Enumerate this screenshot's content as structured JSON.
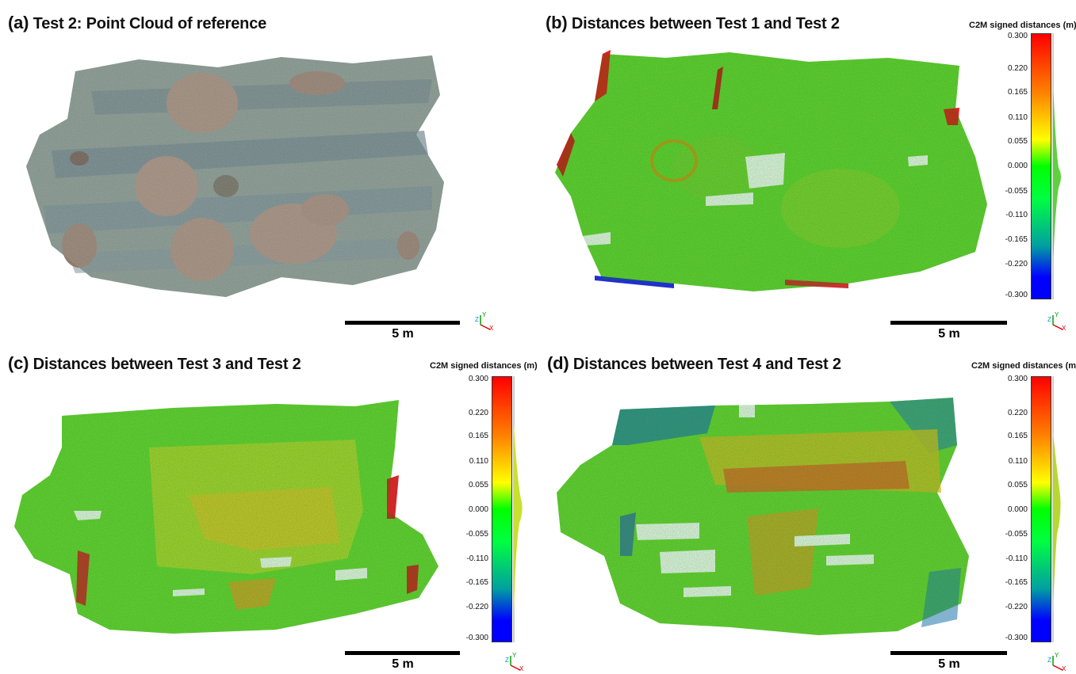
{
  "panels": {
    "a": {
      "tag": "(a)",
      "title": "Test 2: Point Cloud of reference"
    },
    "b": {
      "tag": "(b)",
      "title": "Distances between Test 1 and Test 2"
    },
    "c": {
      "tag": "(c)",
      "title": "Distances between Test 3 and Test 2"
    },
    "d": {
      "tag": "(d)",
      "title": "Distances between Test 4 and Test 2"
    }
  },
  "scale_label": "5 m",
  "axis_labels": {
    "z": "Z",
    "y": "Y",
    "x": "X"
  },
  "colorbar": {
    "title": "C2M signed distances (m)",
    "ticks": [
      "0.300",
      "0.220",
      "0.165",
      "0.110",
      "0.055",
      "0.000",
      "-0.055",
      "-0.110",
      "-0.165",
      "-0.220",
      "-0.300"
    ]
  },
  "colors": {
    "high": "#ff0000",
    "mid": "#00ff00",
    "low": "#0000ff"
  }
}
